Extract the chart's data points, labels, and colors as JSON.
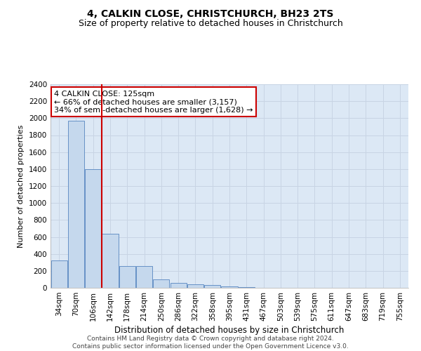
{
  "title": "4, CALKIN CLOSE, CHRISTCHURCH, BH23 2TS",
  "subtitle": "Size of property relative to detached houses in Christchurch",
  "xlabel": "Distribution of detached houses by size in Christchurch",
  "ylabel": "Number of detached properties",
  "categories": [
    "34sqm",
    "70sqm",
    "106sqm",
    "142sqm",
    "178sqm",
    "214sqm",
    "250sqm",
    "286sqm",
    "322sqm",
    "358sqm",
    "395sqm",
    "431sqm",
    "467sqm",
    "503sqm",
    "539sqm",
    "575sqm",
    "611sqm",
    "647sqm",
    "683sqm",
    "719sqm",
    "755sqm"
  ],
  "values": [
    320,
    1970,
    1400,
    640,
    260,
    260,
    100,
    55,
    45,
    30,
    20,
    10,
    0,
    0,
    0,
    0,
    0,
    0,
    0,
    0,
    0
  ],
  "bar_color": "#c5d8ed",
  "bar_edge_color": "#5585c0",
  "bar_edge_width": 0.6,
  "vline_x_index": 2,
  "vline_color": "#cc0000",
  "annotation_line1": "4 CALKIN CLOSE: 125sqm",
  "annotation_line2": "← 66% of detached houses are smaller (3,157)",
  "annotation_line3": "34% of semi-detached houses are larger (1,628) →",
  "annotation_box_color": "#ffffff",
  "annotation_box_edge_color": "#cc0000",
  "ylim": [
    0,
    2400
  ],
  "yticks": [
    0,
    200,
    400,
    600,
    800,
    1000,
    1200,
    1400,
    1600,
    1800,
    2000,
    2200,
    2400
  ],
  "grid_color": "#c8d4e4",
  "plot_bg_color": "#dce8f5",
  "title_fontsize": 10,
  "subtitle_fontsize": 9,
  "xlabel_fontsize": 8.5,
  "ylabel_fontsize": 8,
  "tick_fontsize": 7.5,
  "annotation_fontsize": 8,
  "footer_fontsize": 6.5,
  "footer_line1": "Contains HM Land Registry data © Crown copyright and database right 2024.",
  "footer_line2": "Contains public sector information licensed under the Open Government Licence v3.0."
}
